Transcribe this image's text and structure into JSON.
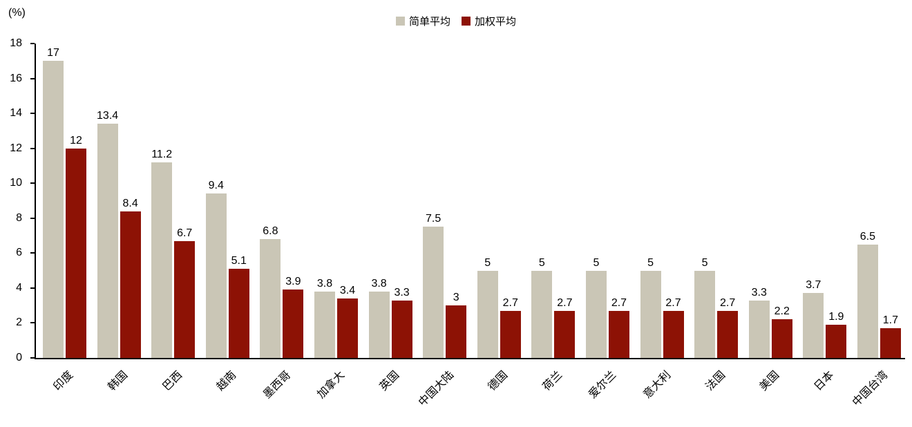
{
  "chart_data": {
    "type": "bar",
    "title": "",
    "ylabel": "(%)",
    "xlabel": "",
    "categories": [
      "印度",
      "韩国",
      "巴西",
      "越南",
      "墨西哥",
      "加拿大",
      "英国",
      "中国大陆",
      "德国",
      "荷兰",
      "爱尔兰",
      "意大利",
      "法国",
      "美国",
      "日本",
      "中国台湾"
    ],
    "series": [
      {
        "name": "简单平均",
        "color": "#cac6b6",
        "values": [
          17,
          13.4,
          11.2,
          9.4,
          6.8,
          3.8,
          3.8,
          7.5,
          5,
          5,
          5,
          5,
          5,
          3.3,
          3.7,
          6.5
        ]
      },
      {
        "name": "加权平均",
        "color": "#8d1205",
        "values": [
          12,
          8.4,
          6.7,
          5.1,
          3.9,
          3.4,
          3.3,
          3,
          2.7,
          2.7,
          2.7,
          2.7,
          2.7,
          2.2,
          1.9,
          1.7
        ]
      }
    ],
    "ylim": [
      0,
      18
    ],
    "ytick_step": 2,
    "grid": false,
    "legend_position": "top-center"
  }
}
